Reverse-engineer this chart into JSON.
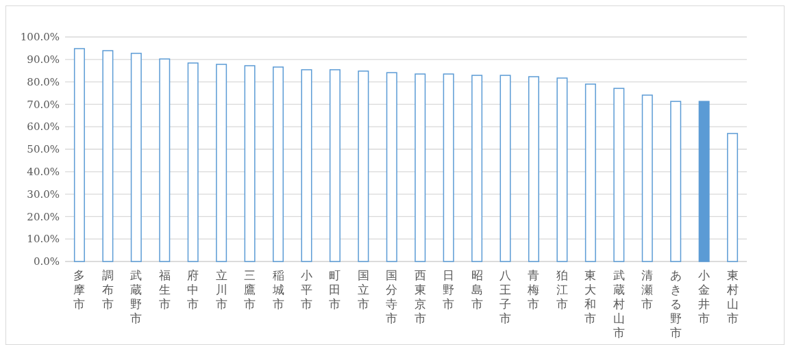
{
  "chart_data": {
    "type": "bar",
    "categories": [
      "多摩市",
      "調布市",
      "武蔵野市",
      "福生市",
      "府中市",
      "立川市",
      "三鷹市",
      "稲城市",
      "小平市",
      "町田市",
      "国立市",
      "国分寺市",
      "西東京市",
      "日野市",
      "昭島市",
      "八王子市",
      "青梅市",
      "狛江市",
      "東大和市",
      "武蔵村山市",
      "清瀬市",
      "あきる野市",
      "小金井市",
      "東村山市"
    ],
    "values": [
      94.8,
      93.9,
      92.7,
      90.2,
      88.4,
      87.8,
      87.2,
      86.6,
      85.4,
      85.4,
      84.8,
      84.1,
      83.5,
      83.5,
      82.9,
      82.9,
      82.3,
      81.7,
      79.0,
      77.1,
      74.1,
      71.3,
      71.3,
      57.0
    ],
    "colors": [
      "#ffffff",
      "#ffffff",
      "#ffffff",
      "#ffffff",
      "#ffffff",
      "#ffffff",
      "#ffffff",
      "#ffffff",
      "#ffffff",
      "#ffffff",
      "#ffffff",
      "#ffffff",
      "#ffffff",
      "#ffffff",
      "#ffffff",
      "#ffffff",
      "#ffffff",
      "#ffffff",
      "#ffffff",
      "#ffffff",
      "#ffffff",
      "#ffffff",
      "#5b9bd5",
      "#ffffff"
    ],
    "ylim": [
      0,
      100
    ],
    "yticks": [
      {
        "value": 0,
        "label": "0.0%"
      },
      {
        "value": 10,
        "label": "10.0%"
      },
      {
        "value": 20,
        "label": "20.0%"
      },
      {
        "value": 30,
        "label": "30.0%"
      },
      {
        "value": 40,
        "label": "40.0%"
      },
      {
        "value": 50,
        "label": "50.0%"
      },
      {
        "value": 60,
        "label": "60.0%"
      },
      {
        "value": 70,
        "label": "70.0%"
      },
      {
        "value": 80,
        "label": "80.0%"
      },
      {
        "value": 90,
        "label": "90.0%"
      },
      {
        "value": 100,
        "label": "100.0%"
      }
    ],
    "grid": "y"
  }
}
